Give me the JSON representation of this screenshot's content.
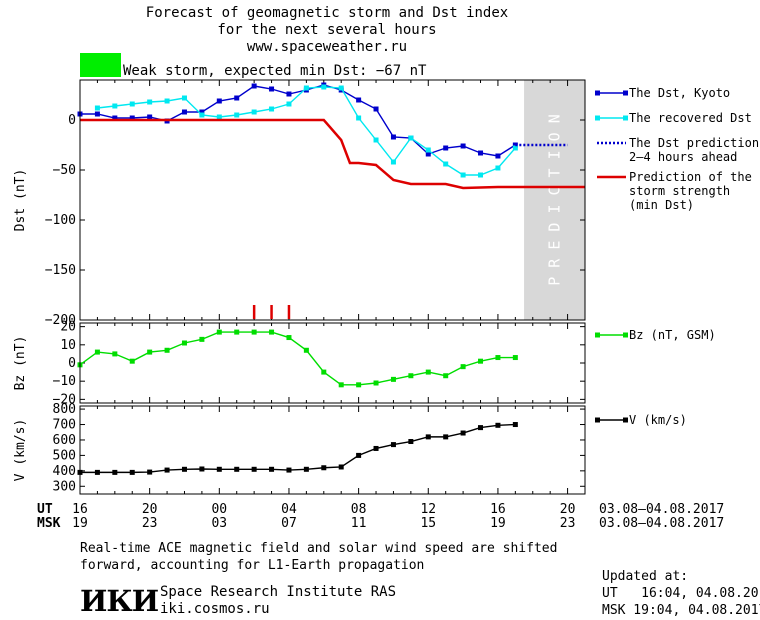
{
  "header": {
    "title_line1": "Forecast of geomagnetic storm and Dst index",
    "title_line2": "for the next several hours",
    "site": "www.spaceweather.ru",
    "storm_label": "Weak storm, expected min Dst: −67 nT",
    "storm_color": "#00ee00"
  },
  "colors": {
    "dst": "#0000cc",
    "recovered": "#00e8f0",
    "prediction": "#0000cc",
    "strength": "#dd0000",
    "bz": "#00dd00",
    "v": "#000000",
    "prediction_band": "#d8d8d8"
  },
  "chart_data": [
    {
      "type": "line",
      "name": "dst_panel",
      "ylabel": "Dst (nT)",
      "ylim": [
        -200,
        40
      ],
      "yticks": [
        0,
        -50,
        -100,
        -150,
        -200
      ],
      "ytick_labels": [
        "0",
        "−50",
        "−100",
        "−150",
        "−200"
      ],
      "xlim": [
        16,
        45
      ],
      "prediction_band": {
        "x": [
          41.5,
          45
        ],
        "label": "P R E D I C T I O N"
      },
      "storm_markers": [
        26,
        27,
        28
      ],
      "series": [
        {
          "key": "dst",
          "name": "The Dst, Kyoto",
          "x": [
            16,
            17,
            18,
            19,
            20,
            21,
            22,
            23,
            24,
            25,
            26,
            27,
            28,
            29,
            30,
            31,
            32,
            33,
            34,
            35,
            36,
            37,
            38,
            39,
            40,
            41
          ],
          "y": [
            6,
            6,
            2,
            2,
            3,
            -1,
            8,
            8,
            19,
            22,
            34,
            31,
            26,
            30,
            35,
            30,
            20,
            11,
            -17,
            -18,
            -34,
            -28,
            -26,
            -33,
            -36,
            -25
          ]
        },
        {
          "key": "recovered",
          "name": "The recovered Dst",
          "x": [
            17,
            18,
            19,
            20,
            21,
            22,
            23,
            24,
            25,
            26,
            27,
            28,
            29,
            30,
            31,
            32,
            33,
            34,
            35,
            36,
            37,
            38,
            39,
            40,
            41
          ],
          "y": [
            12,
            14,
            16,
            18,
            19,
            22,
            5,
            3,
            5,
            8,
            11,
            16,
            32,
            33,
            32,
            2,
            -20,
            -42,
            -18,
            -30,
            -44,
            -55,
            -55,
            -48,
            -28
          ]
        },
        {
          "key": "prediction",
          "name": "The Dst prediction 2–4 hours ahead",
          "x": [
            41,
            42,
            43,
            44
          ],
          "y": [
            -25,
            -25,
            -25,
            -25
          ]
        },
        {
          "key": "strength",
          "name": "Prediction of the storm strength (min Dst)",
          "x": [
            16,
            30,
            31,
            31.5,
            32,
            33,
            34,
            35,
            36,
            37,
            38,
            40,
            42,
            45
          ],
          "y": [
            0,
            0,
            -20,
            -43,
            -43,
            -45,
            -60,
            -64,
            -64,
            -64,
            -68,
            -67,
            -67,
            -67
          ]
        }
      ],
      "legend": [
        {
          "key": "dst",
          "line1": "The Dst, Kyoto"
        },
        {
          "key": "recovered",
          "line1": "The recovered Dst"
        },
        {
          "key": "prediction",
          "line1": "The Dst prediction",
          "line2": "2–4 hours ahead"
        },
        {
          "key": "strength",
          "line1": "Prediction of the",
          "line2": "storm strength",
          "line3": "(min Dst)"
        }
      ]
    },
    {
      "type": "line",
      "name": "bz_panel",
      "ylabel": "Bz (nT)",
      "ylim": [
        -22,
        22
      ],
      "yticks": [
        20,
        10,
        0,
        -10,
        -20
      ],
      "ytick_labels": [
        "20",
        "10",
        "0",
        "−10",
        "−20"
      ],
      "xlim": [
        16,
        45
      ],
      "series": [
        {
          "key": "bz",
          "name": "Bz (nT, GSM)",
          "x": [
            16,
            17,
            18,
            19,
            20,
            21,
            22,
            23,
            24,
            25,
            26,
            27,
            28,
            29,
            30,
            31,
            32,
            33,
            34,
            35,
            36,
            37,
            38,
            39,
            40,
            41
          ],
          "y": [
            -1,
            6,
            5,
            1,
            6,
            7,
            11,
            13,
            17,
            17,
            17,
            17,
            14,
            7,
            -5,
            -12,
            -12,
            -11,
            -9,
            -7,
            -5,
            -7,
            -2,
            1,
            3,
            3
          ]
        }
      ],
      "legend": [
        {
          "key": "bz",
          "line1": "Bz (nT, GSM)"
        }
      ]
    },
    {
      "type": "line",
      "name": "v_panel",
      "ylabel": "V (km/s)",
      "ylim": [
        250,
        820
      ],
      "yticks": [
        800,
        700,
        600,
        500,
        400,
        300
      ],
      "ytick_labels": [
        "800",
        "700",
        "600",
        "500",
        "400",
        "300"
      ],
      "xlim": [
        16,
        45
      ],
      "series": [
        {
          "key": "v",
          "name": "V (km/s)",
          "x": [
            16,
            17,
            18,
            19,
            20,
            21,
            22,
            23,
            24,
            25,
            26,
            27,
            28,
            29,
            30,
            31,
            32,
            33,
            34,
            35,
            36,
            37,
            38,
            39,
            40,
            41
          ],
          "y": [
            390,
            390,
            390,
            390,
            392,
            405,
            410,
            412,
            410,
            410,
            410,
            410,
            405,
            410,
            420,
            425,
            500,
            545,
            570,
            590,
            620,
            620,
            645,
            680,
            695,
            700
          ]
        }
      ],
      "legend": [
        {
          "key": "v",
          "line1": "V (km/s)"
        }
      ]
    }
  ],
  "xaxis": {
    "ut_label": "UT",
    "msk_label": "MSK",
    "ticks": [
      16,
      20,
      24,
      28,
      32,
      36,
      40,
      44
    ],
    "ut_labels": [
      "16",
      "20",
      "00",
      "04",
      "08",
      "12",
      "16",
      "20"
    ],
    "msk_labels": [
      "19",
      "23",
      "03",
      "07",
      "11",
      "15",
      "19",
      "23"
    ],
    "ut_date": "03.08–04.08.2017",
    "msk_date": "03.08–04.08.2017"
  },
  "footer": {
    "note_line1": "Real-time ACE magnetic field and solar wind speed are shifted",
    "note_line2": "forward, accounting for L1-Earth propagation",
    "logo": "ИКИ",
    "institute": "Space Research Institute RAS",
    "url": "iki.cosmos.ru",
    "updated_label": "Updated at:",
    "updated_ut": "UT   16:04, 04.08.2017",
    "updated_msk": "MSK 19:04, 04.08.2017"
  }
}
